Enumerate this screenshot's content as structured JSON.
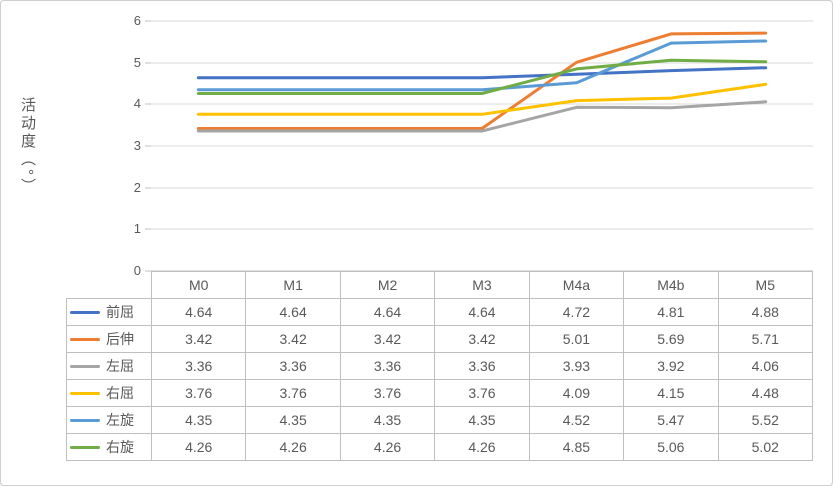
{
  "figure": {
    "background": "#FFFFFF",
    "border_color": "#CFCFCF"
  },
  "chart_data": {
    "type": "line",
    "title": "",
    "xlabel": "",
    "ylabel": "活动度（°）",
    "categories": [
      "M0",
      "M1",
      "M2",
      "M3",
      "M4a",
      "M4b",
      "M5"
    ],
    "series": [
      {
        "name": "前屈",
        "color": "#4472C4",
        "values": [
          4.64,
          4.64,
          4.64,
          4.64,
          4.72,
          4.81,
          4.88
        ]
      },
      {
        "name": "后伸",
        "color": "#ED7D31",
        "values": [
          3.42,
          3.42,
          3.42,
          3.42,
          5.01,
          5.69,
          5.71
        ]
      },
      {
        "name": "左屈",
        "color": "#A5A5A5",
        "values": [
          3.36,
          3.36,
          3.36,
          3.36,
          3.93,
          3.92,
          4.06
        ]
      },
      {
        "name": "右屈",
        "color": "#FFC000",
        "values": [
          3.76,
          3.76,
          3.76,
          3.76,
          4.09,
          4.15,
          4.48
        ]
      },
      {
        "name": "左旋",
        "color": "#5B9BD5",
        "values": [
          4.35,
          4.35,
          4.35,
          4.35,
          4.52,
          5.47,
          5.52
        ]
      },
      {
        "name": "右旋",
        "color": "#70AD47",
        "values": [
          4.26,
          4.26,
          4.26,
          4.26,
          4.85,
          5.06,
          5.02
        ]
      }
    ],
    "ylim": [
      0,
      6
    ],
    "yticks": [
      0,
      1,
      2,
      3,
      4,
      5,
      6
    ],
    "grid": true,
    "value_decimals": 2,
    "legend_position": "data-table-left",
    "colors": {
      "gridline": "#D9D9D9",
      "axis_line": "#BFBFBF",
      "table_border": "#BFBFBF",
      "text": "#595959"
    }
  }
}
